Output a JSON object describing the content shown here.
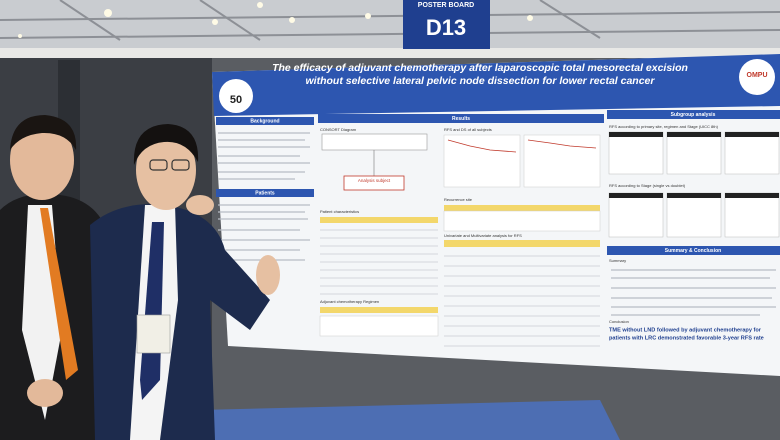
{
  "sign": {
    "label": "POSTER BOARD",
    "number": "D13"
  },
  "poster": {
    "title_lines": [
      "The efficacy of adjuvant chemotherapy after laparoscopic total mesorectal excision",
      "without selective lateral pelvic node dissection for lower rectal cancer"
    ],
    "abstract_number": "50",
    "logo": "OMPU",
    "sections": {
      "background": "Background",
      "patients": "Patients",
      "results": "Results",
      "subgroup": "Subgroup analysis",
      "summary_conclusion": "Summary & Conclusion"
    },
    "results": {
      "consort": "CONSORT Diagram",
      "analysis_subject": "Analysis subject",
      "patient_characteristics": "Patient characteristics",
      "regimen": "Adjuvant chemotherapy Regimen",
      "rfs_ds": "RFS and DS of all subjects",
      "recurrence": "Recurrence site",
      "univariate": "Univariate and Multivariate analysis for RFS"
    },
    "subgroup": {
      "by_site": "RFS according to primary site, regimen and Stage (UICC 8th)",
      "by_stage": "RFS according to Stage (single vs doublet)"
    },
    "summary": {
      "summary_label": "Summary",
      "conclusion_label": "Conclusion",
      "conclusion_lines": [
        "TME without LND followed by adjuvant chemotherapy for",
        "patients with LRC demonstrated favorable 3-year RFS rate"
      ]
    }
  }
}
